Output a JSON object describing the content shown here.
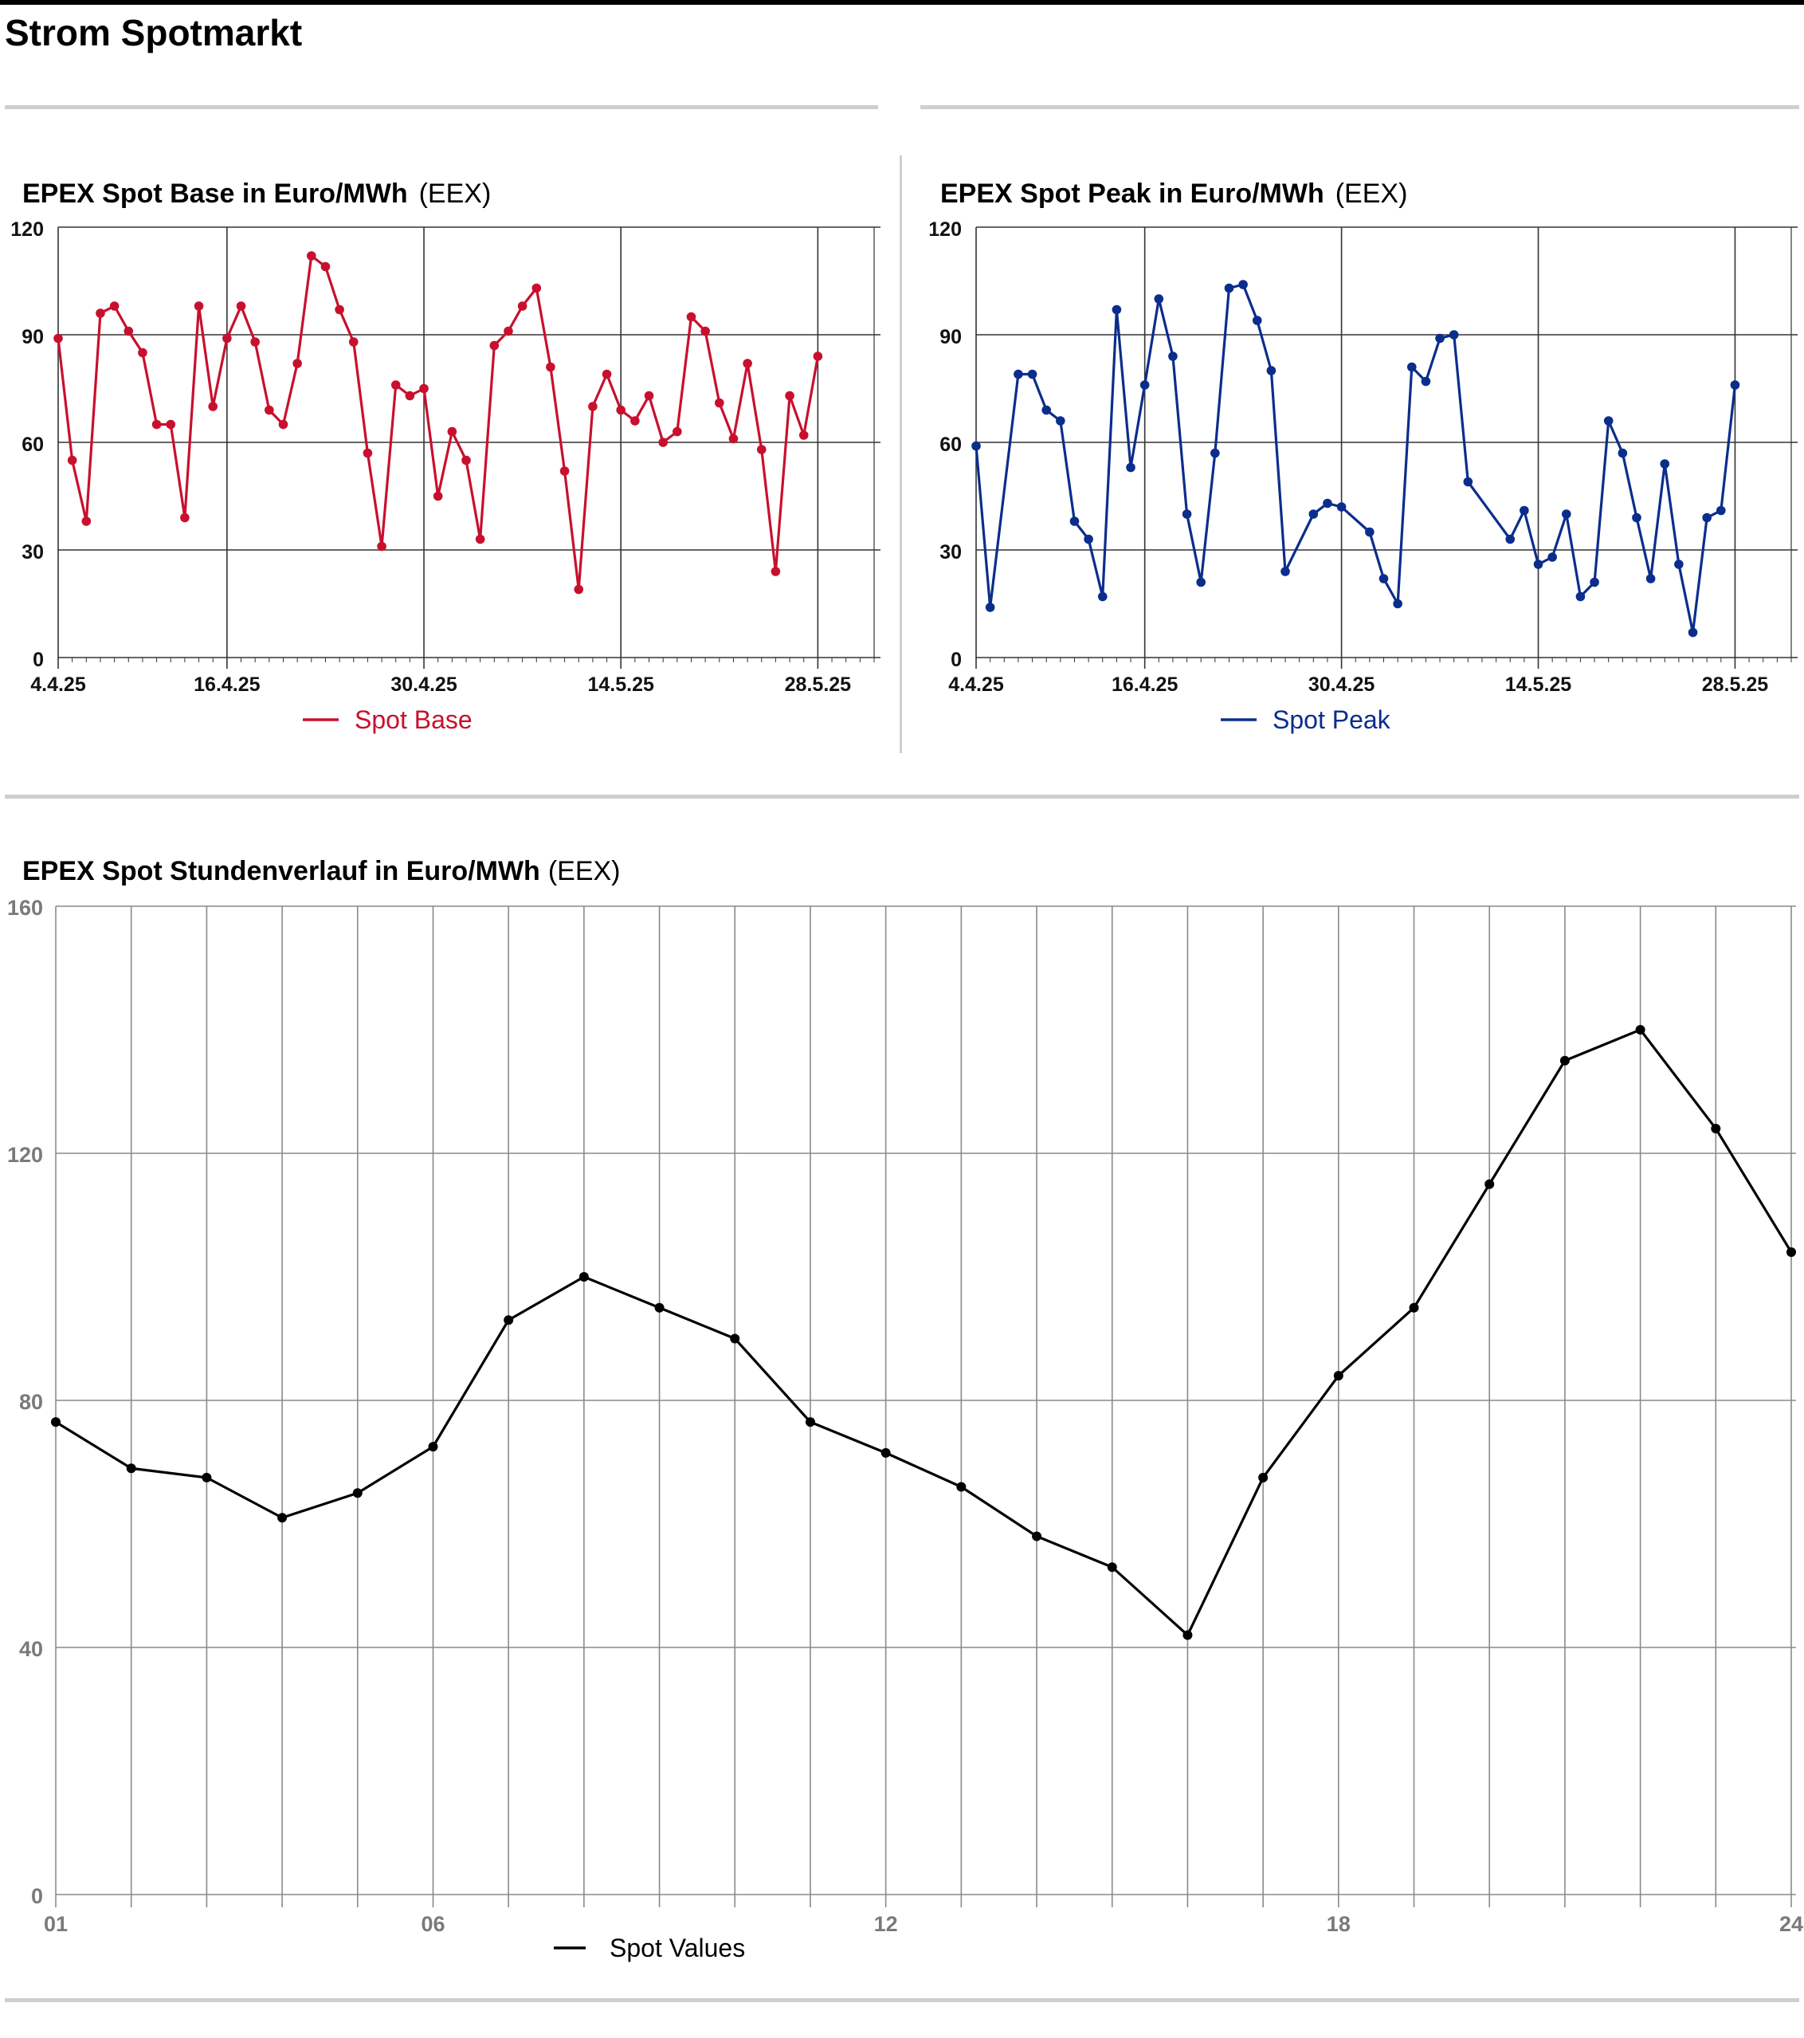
{
  "page": {
    "title": "Strom Spotmarkt"
  },
  "charts_text": {
    "base": {
      "title": "EPEX Spot Base in Euro/MWh",
      "source": "(EEX)"
    },
    "peak": {
      "title": "EPEX Spot Peak in Euro/MWh",
      "source": "(EEX)"
    },
    "hourly": {
      "title": "EPEX Spot Stundenverlauf in Euro/MWh",
      "source": "(EEX)"
    }
  },
  "colors": {
    "base": "#c8102e",
    "peak": "#0b2d8c",
    "hourly": "#000000",
    "grid_dark": "#333333",
    "grid_light": "#8a8a8a",
    "tick_grey": "#7a7a7a"
  },
  "chart_data": [
    {
      "type": "line",
      "title": "EPEX Spot Base in Euro/MWh",
      "source": "(EEX)",
      "x_start": "2025-04-04",
      "x_end": "2025-06-01",
      "ylim": [
        0,
        120
      ],
      "yticks": [
        0,
        30,
        60,
        90,
        120
      ],
      "xticks": [
        {
          "date": "2025-04-04",
          "label": "4.4.25"
        },
        {
          "date": "2025-04-16",
          "label": "16.4.25"
        },
        {
          "date": "2025-04-30",
          "label": "30.4.25"
        },
        {
          "date": "2025-05-14",
          "label": "14.5.25"
        },
        {
          "date": "2025-05-28",
          "label": "28.5.25"
        }
      ],
      "grid": true,
      "legend_position": "bottom-center",
      "series": [
        {
          "name": "Spot Base",
          "points": [
            [
              "2025-04-04",
              89
            ],
            [
              "2025-04-05",
              55
            ],
            [
              "2025-04-06",
              38
            ],
            [
              "2025-04-07",
              96
            ],
            [
              "2025-04-08",
              98
            ],
            [
              "2025-04-09",
              91
            ],
            [
              "2025-04-10",
              85
            ],
            [
              "2025-04-11",
              65
            ],
            [
              "2025-04-12",
              65
            ],
            [
              "2025-04-13",
              39
            ],
            [
              "2025-04-14",
              98
            ],
            [
              "2025-04-15",
              70
            ],
            [
              "2025-04-16",
              89
            ],
            [
              "2025-04-17",
              98
            ],
            [
              "2025-04-18",
              88
            ],
            [
              "2025-04-19",
              69
            ],
            [
              "2025-04-20",
              65
            ],
            [
              "2025-04-21",
              82
            ],
            [
              "2025-04-22",
              112
            ],
            [
              "2025-04-23",
              109
            ],
            [
              "2025-04-24",
              97
            ],
            [
              "2025-04-25",
              88
            ],
            [
              "2025-04-26",
              57
            ],
            [
              "2025-04-27",
              31
            ],
            [
              "2025-04-28",
              76
            ],
            [
              "2025-04-29",
              73
            ],
            [
              "2025-04-30",
              75
            ],
            [
              "2025-05-01",
              45
            ],
            [
              "2025-05-02",
              63
            ],
            [
              "2025-05-03",
              55
            ],
            [
              "2025-05-04",
              33
            ],
            [
              "2025-05-05",
              87
            ],
            [
              "2025-05-06",
              91
            ],
            [
              "2025-05-07",
              98
            ],
            [
              "2025-05-08",
              103
            ],
            [
              "2025-05-09",
              81
            ],
            [
              "2025-05-10",
              52
            ],
            [
              "2025-05-11",
              19
            ],
            [
              "2025-05-12",
              70
            ],
            [
              "2025-05-13",
              79
            ],
            [
              "2025-05-14",
              69
            ],
            [
              "2025-05-15",
              66
            ],
            [
              "2025-05-16",
              73
            ],
            [
              "2025-05-17",
              60
            ],
            [
              "2025-05-18",
              63
            ],
            [
              "2025-05-19",
              95
            ],
            [
              "2025-05-20",
              91
            ],
            [
              "2025-05-21",
              71
            ],
            [
              "2025-05-22",
              61
            ],
            [
              "2025-05-23",
              82
            ],
            [
              "2025-05-24",
              58
            ],
            [
              "2025-05-25",
              24
            ],
            [
              "2025-05-26",
              73
            ],
            [
              "2025-05-27",
              62
            ],
            [
              "2025-05-28",
              84
            ]
          ]
        }
      ]
    },
    {
      "type": "line",
      "title": "EPEX Spot Peak in Euro/MWh",
      "source": "(EEX)",
      "x_start": "2025-04-04",
      "x_end": "2025-06-01",
      "ylim": [
        0,
        120
      ],
      "yticks": [
        0,
        30,
        60,
        90,
        120
      ],
      "xticks": [
        {
          "date": "2025-04-04",
          "label": "4.4.25"
        },
        {
          "date": "2025-04-16",
          "label": "16.4.25"
        },
        {
          "date": "2025-04-30",
          "label": "30.4.25"
        },
        {
          "date": "2025-05-14",
          "label": "14.5.25"
        },
        {
          "date": "2025-05-28",
          "label": "28.5.25"
        }
      ],
      "grid": true,
      "legend_position": "bottom-center",
      "series": [
        {
          "name": "Spot Peak",
          "points": [
            [
              "2025-04-04",
              59
            ],
            [
              "2025-04-05",
              14
            ],
            [
              "2025-04-07",
              79
            ],
            [
              "2025-04-08",
              79
            ],
            [
              "2025-04-09",
              69
            ],
            [
              "2025-04-10",
              66
            ],
            [
              "2025-04-11",
              38
            ],
            [
              "2025-04-12",
              33
            ],
            [
              "2025-04-13",
              17
            ],
            [
              "2025-04-14",
              97
            ],
            [
              "2025-04-15",
              53
            ],
            [
              "2025-04-16",
              76
            ],
            [
              "2025-04-17",
              100
            ],
            [
              "2025-04-18",
              84
            ],
            [
              "2025-04-19",
              40
            ],
            [
              "2025-04-20",
              21
            ],
            [
              "2025-04-21",
              57
            ],
            [
              "2025-04-22",
              103
            ],
            [
              "2025-04-23",
              104
            ],
            [
              "2025-04-24",
              94
            ],
            [
              "2025-04-25",
              80
            ],
            [
              "2025-04-26",
              24
            ],
            [
              "2025-04-28",
              40
            ],
            [
              "2025-04-29",
              43
            ],
            [
              "2025-04-30",
              42
            ],
            [
              "2025-05-02",
              35
            ],
            [
              "2025-05-03",
              22
            ],
            [
              "2025-05-04",
              15
            ],
            [
              "2025-05-05",
              81
            ],
            [
              "2025-05-06",
              77
            ],
            [
              "2025-05-07",
              89
            ],
            [
              "2025-05-08",
              90
            ],
            [
              "2025-05-09",
              49
            ],
            [
              "2025-05-12",
              33
            ],
            [
              "2025-05-13",
              41
            ],
            [
              "2025-05-14",
              26
            ],
            [
              "2025-05-15",
              28
            ],
            [
              "2025-05-16",
              40
            ],
            [
              "2025-05-17",
              17
            ],
            [
              "2025-05-18",
              21
            ],
            [
              "2025-05-19",
              66
            ],
            [
              "2025-05-20",
              57
            ],
            [
              "2025-05-21",
              39
            ],
            [
              "2025-05-22",
              22
            ],
            [
              "2025-05-23",
              54
            ],
            [
              "2025-05-24",
              26
            ],
            [
              "2025-05-25",
              7
            ],
            [
              "2025-05-26",
              39
            ],
            [
              "2025-05-27",
              41
            ],
            [
              "2025-05-28",
              76
            ]
          ]
        }
      ]
    },
    {
      "type": "line",
      "title": "EPEX Spot Stundenverlauf in Euro/MWh",
      "source": "(EEX)",
      "xlim": [
        1,
        24
      ],
      "ylim": [
        0,
        160
      ],
      "yticks": [
        0,
        40,
        80,
        120,
        160
      ],
      "xticks": [
        {
          "value": 1,
          "label": "01"
        },
        {
          "value": 6,
          "label": "06"
        },
        {
          "value": 12,
          "label": "12"
        },
        {
          "value": 18,
          "label": "18"
        },
        {
          "value": 24,
          "label": "24"
        }
      ],
      "grid": true,
      "legend_position": "bottom-center",
      "series": [
        {
          "name": "Spot Values",
          "x": [
            1,
            2,
            3,
            4,
            5,
            6,
            7,
            8,
            9,
            10,
            11,
            12,
            13,
            14,
            15,
            16,
            17,
            18,
            19,
            20,
            21,
            22,
            23,
            24
          ],
          "values": [
            76.5,
            69,
            67.5,
            61,
            65,
            72.5,
            93,
            100,
            95,
            90,
            76.5,
            71.5,
            66,
            58,
            53,
            42,
            67.5,
            84,
            95,
            115,
            135,
            140,
            124,
            104
          ]
        }
      ]
    }
  ]
}
